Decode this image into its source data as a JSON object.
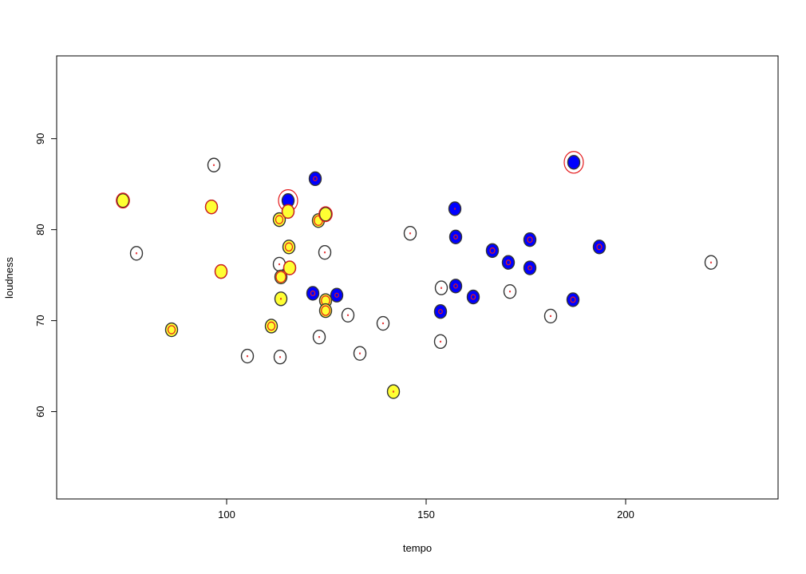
{
  "chart_data": {
    "type": "scatter",
    "title": "",
    "xlabel": "tempo",
    "ylabel": "loudness",
    "xlim": [
      57.4,
      238.2
    ],
    "ylim": [
      50.4,
      99.1
    ],
    "xticks": [
      100,
      150,
      200
    ],
    "yticks": [
      60,
      70,
      80,
      90
    ],
    "grid": false,
    "colors": {
      "white": "#ffffff",
      "yellow": "#ffff33",
      "blue": "#0000ff",
      "outline": "#000000",
      "ring": "#e41a1c"
    },
    "points": [
      {
        "x": 74.0,
        "y": 83.2,
        "fill": "yellow",
        "ring": 1.1
      },
      {
        "x": 77.4,
        "y": 77.4,
        "fill": "white",
        "ring": 0.1
      },
      {
        "x": 86.2,
        "y": 69.0,
        "fill": "yellow",
        "ring": 0.6
      },
      {
        "x": 96.2,
        "y": 82.5,
        "fill": "yellow",
        "ring": 1.0
      },
      {
        "x": 96.8,
        "y": 87.1,
        "fill": "white",
        "ring": 0.1
      },
      {
        "x": 98.6,
        "y": 75.4,
        "fill": "yellow",
        "ring": 1.0
      },
      {
        "x": 105.2,
        "y": 66.1,
        "fill": "white",
        "ring": 0.1
      },
      {
        "x": 111.2,
        "y": 69.4,
        "fill": "yellow",
        "ring": 0.6
      },
      {
        "x": 113.2,
        "y": 81.1,
        "fill": "yellow",
        "ring": 0.6
      },
      {
        "x": 113.2,
        "y": 76.2,
        "fill": "white",
        "ring": 0.1
      },
      {
        "x": 113.6,
        "y": 74.8,
        "fill": "yellow",
        "ring": 0.8
      },
      {
        "x": 113.6,
        "y": 72.4,
        "fill": "yellow",
        "ring": 0.1
      },
      {
        "x": 113.4,
        "y": 66.0,
        "fill": "white",
        "ring": 0.1
      },
      {
        "x": 115.4,
        "y": 83.2,
        "fill": "blue",
        "ring": 1.6
      },
      {
        "x": 115.4,
        "y": 82.0,
        "fill": "yellow",
        "ring": 1.0
      },
      {
        "x": 115.6,
        "y": 78.1,
        "fill": "yellow",
        "ring": 0.6
      },
      {
        "x": 115.8,
        "y": 75.8,
        "fill": "yellow",
        "ring": 1.0
      },
      {
        "x": 121.6,
        "y": 73.0,
        "fill": "blue",
        "ring": 0.35
      },
      {
        "x": 122.2,
        "y": 85.6,
        "fill": "blue",
        "ring": 0.3
      },
      {
        "x": 123.0,
        "y": 81.0,
        "fill": "yellow",
        "ring": 0.7
      },
      {
        "x": 123.2,
        "y": 68.2,
        "fill": "white",
        "ring": 0.1
      },
      {
        "x": 124.6,
        "y": 77.5,
        "fill": "white",
        "ring": 0.1
      },
      {
        "x": 124.8,
        "y": 81.7,
        "fill": "yellow",
        "ring": 1.1
      },
      {
        "x": 124.8,
        "y": 72.2,
        "fill": "yellow",
        "ring": 0.7
      },
      {
        "x": 124.8,
        "y": 71.1,
        "fill": "yellow",
        "ring": 0.7
      },
      {
        "x": 127.6,
        "y": 72.8,
        "fill": "blue",
        "ring": 0.3
      },
      {
        "x": 130.4,
        "y": 70.6,
        "fill": "white",
        "ring": 0.1
      },
      {
        "x": 133.4,
        "y": 66.4,
        "fill": "white",
        "ring": 0.1
      },
      {
        "x": 139.2,
        "y": 69.7,
        "fill": "white",
        "ring": 0.1
      },
      {
        "x": 141.8,
        "y": 62.2,
        "fill": "yellow",
        "ring": 0.1
      },
      {
        "x": 146.0,
        "y": 79.6,
        "fill": "white",
        "ring": 0.1
      },
      {
        "x": 153.6,
        "y": 67.7,
        "fill": "white",
        "ring": 0.1
      },
      {
        "x": 153.6,
        "y": 71.0,
        "fill": "blue",
        "ring": 0.3
      },
      {
        "x": 153.8,
        "y": 73.6,
        "fill": "white",
        "ring": 0.1
      },
      {
        "x": 157.2,
        "y": 82.3,
        "fill": "blue",
        "ring": 0.1
      },
      {
        "x": 157.4,
        "y": 79.2,
        "fill": "blue",
        "ring": 0.3
      },
      {
        "x": 157.4,
        "y": 73.8,
        "fill": "blue",
        "ring": 0.3
      },
      {
        "x": 161.8,
        "y": 72.6,
        "fill": "blue",
        "ring": 0.35
      },
      {
        "x": 166.6,
        "y": 77.7,
        "fill": "blue",
        "ring": 0.4
      },
      {
        "x": 170.6,
        "y": 76.4,
        "fill": "blue",
        "ring": 0.35
      },
      {
        "x": 171.0,
        "y": 73.2,
        "fill": "white",
        "ring": 0.1
      },
      {
        "x": 176.0,
        "y": 78.9,
        "fill": "blue",
        "ring": 0.4
      },
      {
        "x": 176.0,
        "y": 75.8,
        "fill": "blue",
        "ring": 0.3
      },
      {
        "x": 181.2,
        "y": 70.5,
        "fill": "white",
        "ring": 0.1
      },
      {
        "x": 186.8,
        "y": 72.3,
        "fill": "blue",
        "ring": 0.4
      },
      {
        "x": 187.0,
        "y": 87.4,
        "fill": "blue",
        "ring": 1.6
      },
      {
        "x": 193.4,
        "y": 78.1,
        "fill": "blue",
        "ring": 0.4
      },
      {
        "x": 221.4,
        "y": 76.4,
        "fill": "white",
        "ring": 0.1
      }
    ]
  }
}
